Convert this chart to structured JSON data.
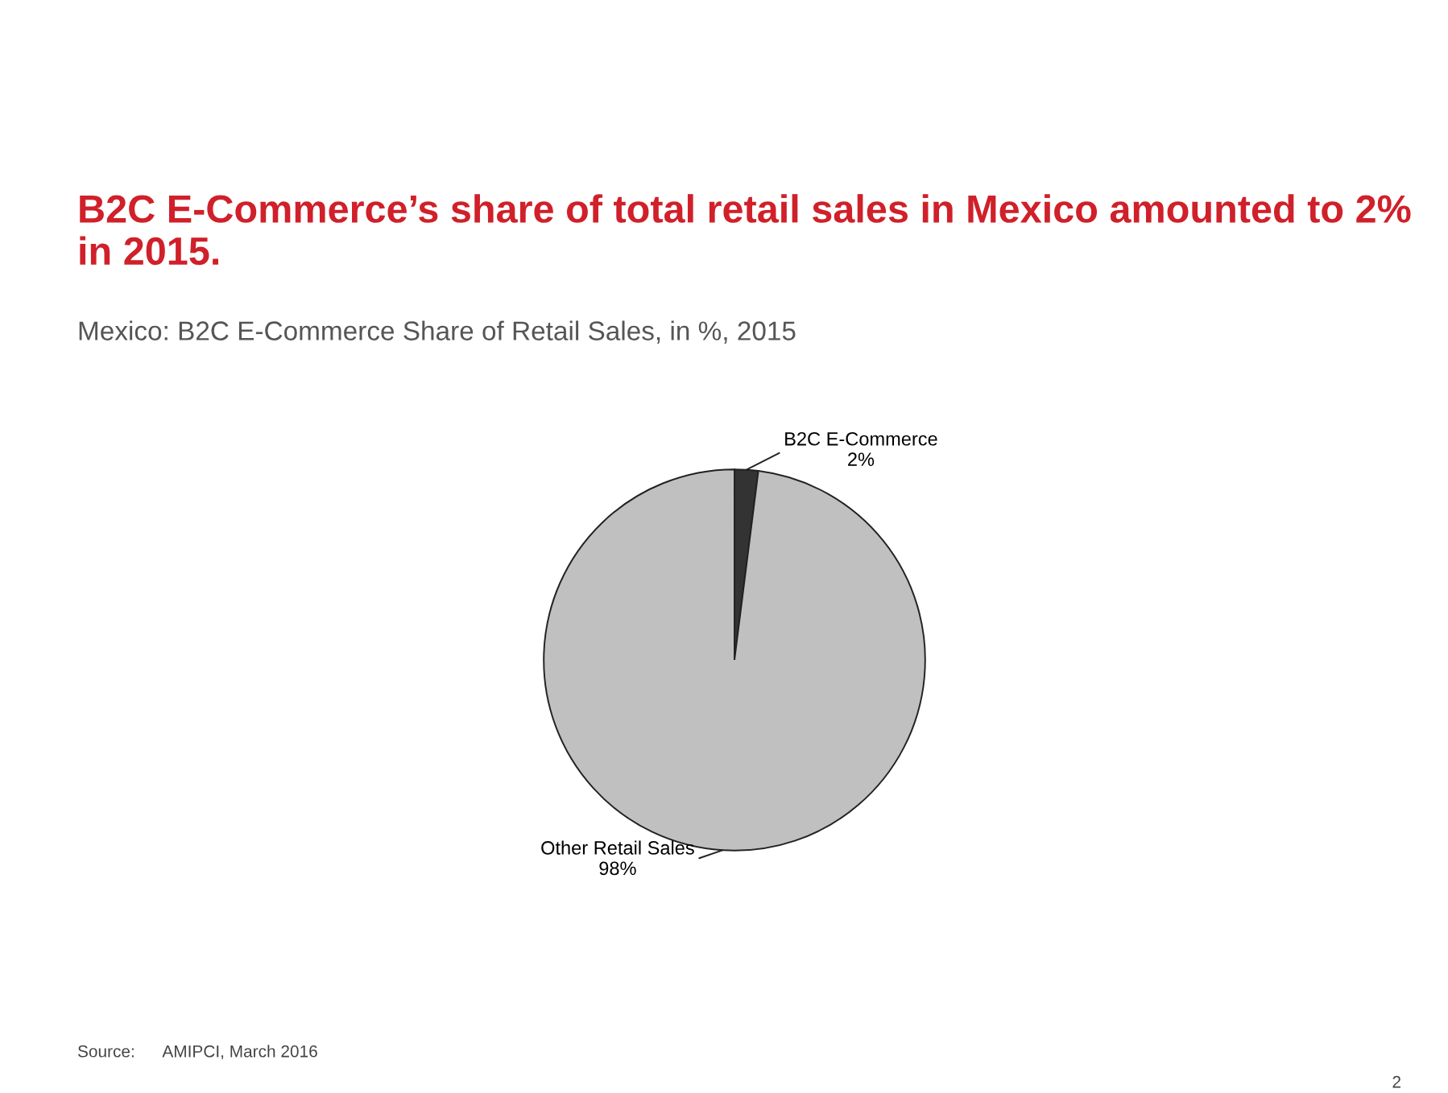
{
  "chart_data": {
    "type": "pie",
    "title": "B2C E-Commerce’s share of total retail sales in Mexico amounted to 2% in 2015.",
    "subtitle": "Mexico: B2C E-Commerce Share of Retail Sales, in %, 2015",
    "categories": [
      "B2C E-Commerce",
      "Other Retail Sales"
    ],
    "values": [
      2,
      98
    ],
    "colors": [
      "#333333",
      "#c0c0c0"
    ],
    "value_labels": [
      "2%",
      "98%"
    ],
    "annotations": [
      "Source:      AMIPCI, March 2016",
      "2"
    ]
  }
}
